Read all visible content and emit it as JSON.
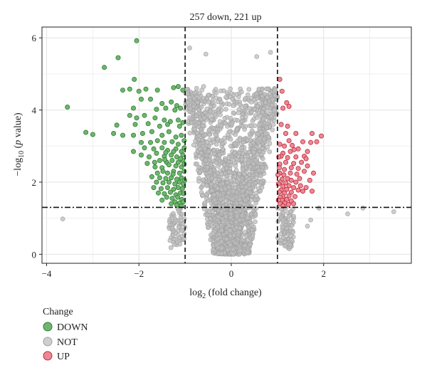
{
  "chart_data": {
    "type": "scatter",
    "title": "257 down, 221 up",
    "xlabel_main": "log",
    "xlabel_sub": "2",
    "xlabel_rest": " (fold change)",
    "ylabel_pre": "−log",
    "ylabel_sub": "10",
    "ylabel_open": " (",
    "ylabel_p": "p",
    "ylabel_close": " value)",
    "xlim": [
      -4.1,
      3.9
    ],
    "ylim": [
      -0.25,
      6.3
    ],
    "x_ticks": [
      -4,
      -2,
      0,
      2
    ],
    "x_tick_labels": [
      "−4",
      "−2",
      "0",
      "2"
    ],
    "y_ticks": [
      0,
      2,
      4,
      6
    ],
    "y_tick_labels": [
      "0",
      "2",
      "4",
      "6"
    ],
    "grid": true,
    "fc_threshold": [
      -1,
      1
    ],
    "p_threshold": 1.3,
    "legend": {
      "title": "Change",
      "placement": "bottom-left",
      "entries": [
        {
          "label": "DOWN",
          "fill": "#6fb56f",
          "stroke": "#2e7d32"
        },
        {
          "label": "NOT",
          "fill": "#cfcfcf",
          "stroke": "#9e9e9e"
        },
        {
          "label": "UP",
          "fill": "#e88a96",
          "stroke": "#c62838"
        }
      ]
    },
    "counts": {
      "down": 257,
      "up": 221
    },
    "colors": {
      "down_fill": "#6fb56f",
      "down_stroke": "#2e7d32",
      "not_fill": "#bdbdbd",
      "not_stroke": "#9e9e9e",
      "up_fill": "#e88a96",
      "up_stroke": "#c62838"
    },
    "series": [
      {
        "name": "DOWN",
        "points": [
          [
            -2.05,
            5.92
          ],
          [
            -2.45,
            5.45
          ],
          [
            -2.75,
            5.18
          ],
          [
            -3.55,
            4.08
          ],
          [
            -2.1,
            4.85
          ],
          [
            -2.35,
            4.55
          ],
          [
            -2.2,
            4.58
          ],
          [
            -2.0,
            4.52
          ],
          [
            -1.85,
            4.58
          ],
          [
            -1.6,
            4.55
          ],
          [
            -1.25,
            4.62
          ],
          [
            -1.15,
            4.65
          ],
          [
            -1.05,
            4.55
          ],
          [
            -1.3,
            4.22
          ],
          [
            -1.18,
            4.12
          ],
          [
            -1.5,
            4.18
          ],
          [
            -1.75,
            4.3
          ],
          [
            -1.95,
            4.3
          ],
          [
            -2.12,
            4.05
          ],
          [
            -1.62,
            4.02
          ],
          [
            -1.42,
            4.05
          ],
          [
            -1.22,
            4.0
          ],
          [
            -1.1,
            4.05
          ],
          [
            -2.2,
            3.85
          ],
          [
            -2.05,
            3.78
          ],
          [
            -1.88,
            3.85
          ],
          [
            -1.65,
            3.78
          ],
          [
            -1.45,
            3.72
          ],
          [
            -1.32,
            3.68
          ],
          [
            -1.15,
            3.72
          ],
          [
            -2.48,
            3.58
          ],
          [
            -2.08,
            3.6
          ],
          [
            -1.8,
            3.62
          ],
          [
            -1.55,
            3.55
          ],
          [
            -1.38,
            3.6
          ],
          [
            -1.12,
            3.55
          ],
          [
            -1.05,
            3.65
          ],
          [
            -3.15,
            3.38
          ],
          [
            -3.0,
            3.32
          ],
          [
            -2.55,
            3.35
          ],
          [
            -2.35,
            3.3
          ],
          [
            -2.12,
            3.3
          ],
          [
            -1.92,
            3.35
          ],
          [
            -1.72,
            3.4
          ],
          [
            -1.5,
            3.3
          ],
          [
            -1.35,
            3.4
          ],
          [
            -1.2,
            3.25
          ],
          [
            -1.08,
            3.3
          ],
          [
            -1.95,
            3.1
          ],
          [
            -1.75,
            3.1
          ],
          [
            -1.6,
            3.15
          ],
          [
            -1.45,
            3.1
          ],
          [
            -1.28,
            3.12
          ],
          [
            -1.15,
            3.05
          ],
          [
            -1.02,
            3.15
          ],
          [
            -1.88,
            2.95
          ],
          [
            -1.68,
            2.92
          ],
          [
            -1.5,
            2.95
          ],
          [
            -1.38,
            2.88
          ],
          [
            -1.2,
            2.92
          ],
          [
            -1.08,
            2.85
          ],
          [
            -1.02,
            2.95
          ],
          [
            -1.95,
            2.75
          ],
          [
            -1.62,
            2.8
          ],
          [
            -1.45,
            2.72
          ],
          [
            -1.3,
            2.75
          ],
          [
            -1.18,
            2.7
          ],
          [
            -1.05,
            2.75
          ],
          [
            -1.42,
            2.82
          ],
          [
            -1.25,
            2.85
          ],
          [
            -2.12,
            2.85
          ],
          [
            -1.78,
            2.7
          ],
          [
            -1.55,
            2.6
          ],
          [
            -1.4,
            2.55
          ],
          [
            -1.28,
            2.6
          ],
          [
            -1.15,
            2.55
          ],
          [
            -1.05,
            2.6
          ],
          [
            -1.35,
            2.48
          ],
          [
            -1.2,
            2.45
          ],
          [
            -1.08,
            2.42
          ],
          [
            -1.65,
            2.42
          ],
          [
            -1.5,
            2.4
          ],
          [
            -1.6,
            2.25
          ],
          [
            -1.48,
            2.3
          ],
          [
            -1.38,
            2.25
          ],
          [
            -1.25,
            2.3
          ],
          [
            -1.12,
            2.25
          ],
          [
            -1.02,
            2.3
          ],
          [
            -1.72,
            2.15
          ],
          [
            -1.55,
            2.12
          ],
          [
            -1.42,
            2.1
          ],
          [
            -1.3,
            2.12
          ],
          [
            -1.18,
            2.08
          ],
          [
            -1.08,
            2.12
          ],
          [
            -1.62,
            2.0
          ],
          [
            -1.48,
            1.98
          ],
          [
            -1.35,
            2.0
          ],
          [
            -1.22,
            1.95
          ],
          [
            -1.12,
            2.0
          ],
          [
            -1.04,
            1.95
          ],
          [
            -1.68,
            1.85
          ],
          [
            -1.52,
            1.82
          ],
          [
            -1.38,
            1.85
          ],
          [
            -1.25,
            1.8
          ],
          [
            -1.15,
            1.85
          ],
          [
            -1.06,
            1.82
          ],
          [
            -1.58,
            1.7
          ],
          [
            -1.45,
            1.68
          ],
          [
            -1.32,
            1.72
          ],
          [
            -1.2,
            1.65
          ],
          [
            -1.1,
            1.7
          ],
          [
            -1.03,
            1.68
          ],
          [
            -1.4,
            1.58
          ],
          [
            -1.28,
            1.55
          ],
          [
            -1.16,
            1.58
          ],
          [
            -1.07,
            1.52
          ],
          [
            -1.22,
            1.45
          ],
          [
            -1.12,
            1.42
          ],
          [
            -1.04,
            1.45
          ],
          [
            -1.18,
            1.36
          ],
          [
            -1.08,
            1.34
          ],
          [
            -1.3,
            1.4
          ],
          [
            -1.5,
            1.5
          ],
          [
            -1.02,
            2.5
          ],
          [
            -1.01,
            2.05
          ],
          [
            -1.1,
            2.65
          ],
          [
            -1.26,
            2.22
          ],
          [
            -1.44,
            2.62
          ],
          [
            -1.66,
            2.55
          ],
          [
            -1.82,
            2.52
          ]
        ]
      },
      {
        "name": "UP",
        "points": [
          [
            1.05,
            4.85
          ],
          [
            1.1,
            4.52
          ],
          [
            1.2,
            4.2
          ],
          [
            1.25,
            4.1
          ],
          [
            1.12,
            4.05
          ],
          [
            1.08,
            3.6
          ],
          [
            1.22,
            3.55
          ],
          [
            1.18,
            3.35
          ],
          [
            1.75,
            3.35
          ],
          [
            1.95,
            3.28
          ],
          [
            1.72,
            3.1
          ],
          [
            1.85,
            3.12
          ],
          [
            1.55,
            3.12
          ],
          [
            1.32,
            3.02
          ],
          [
            1.15,
            3.0
          ],
          [
            1.05,
            3.05
          ],
          [
            1.65,
            2.85
          ],
          [
            1.45,
            2.92
          ],
          [
            1.28,
            2.85
          ],
          [
            1.12,
            2.8
          ],
          [
            1.58,
            2.72
          ],
          [
            1.4,
            2.7
          ],
          [
            1.22,
            2.68
          ],
          [
            1.08,
            2.72
          ],
          [
            1.52,
            2.55
          ],
          [
            1.35,
            2.52
          ],
          [
            1.18,
            2.55
          ],
          [
            1.05,
            2.5
          ],
          [
            1.45,
            2.38
          ],
          [
            1.3,
            2.4
          ],
          [
            1.15,
            2.35
          ],
          [
            1.04,
            2.4
          ],
          [
            1.42,
            2.22
          ],
          [
            1.28,
            2.25
          ],
          [
            1.14,
            2.2
          ],
          [
            1.05,
            2.25
          ],
          [
            1.22,
            2.1
          ],
          [
            1.1,
            2.08
          ],
          [
            1.3,
            2.05
          ],
          [
            1.4,
            2.0
          ],
          [
            1.18,
            1.98
          ],
          [
            1.06,
            2.0
          ],
          [
            1.25,
            1.9
          ],
          [
            1.12,
            1.88
          ],
          [
            1.35,
            1.85
          ],
          [
            1.45,
            1.78
          ],
          [
            1.2,
            1.8
          ],
          [
            1.08,
            1.78
          ],
          [
            1.3,
            1.72
          ],
          [
            1.15,
            1.7
          ],
          [
            1.04,
            1.72
          ],
          [
            1.25,
            1.62
          ],
          [
            1.12,
            1.6
          ],
          [
            1.38,
            1.6
          ],
          [
            1.06,
            1.58
          ],
          [
            1.2,
            1.52
          ],
          [
            1.1,
            1.5
          ],
          [
            1.3,
            1.48
          ],
          [
            1.02,
            1.5
          ],
          [
            1.16,
            1.42
          ],
          [
            1.06,
            1.4
          ],
          [
            1.24,
            1.38
          ],
          [
            1.12,
            1.34
          ],
          [
            1.35,
            1.4
          ],
          [
            1.7,
            2.05
          ],
          [
            1.75,
            1.75
          ],
          [
            1.62,
            1.85
          ],
          [
            1.55,
            1.75
          ],
          [
            1.5,
            1.9
          ],
          [
            1.48,
            2.1
          ],
          [
            1.58,
            2.3
          ],
          [
            1.65,
            2.45
          ],
          [
            1.62,
            2.65
          ],
          [
            1.78,
            2.25
          ],
          [
            1.36,
            2.9
          ],
          [
            1.25,
            3.15
          ],
          [
            1.4,
            3.35
          ],
          [
            1.02,
            1.95
          ],
          [
            1.01,
            2.2
          ],
          [
            1.03,
            2.7
          ]
        ]
      }
    ],
    "not_outliers": [
      [
        -3.65,
        0.98
      ],
      [
        -0.9,
        5.72
      ],
      [
        -0.55,
        5.55
      ],
      [
        0.55,
        5.48
      ],
      [
        0.85,
        5.6
      ],
      [
        -0.95,
        4.45
      ],
      [
        0.95,
        4.55
      ],
      [
        -0.6,
        4.65
      ],
      [
        0.6,
        4.58
      ],
      [
        -0.8,
        4.32
      ],
      [
        0.78,
        4.35
      ],
      [
        2.52,
        1.12
      ],
      [
        2.85,
        1.28
      ],
      [
        3.52,
        1.18
      ],
      [
        1.2,
        0.72
      ],
      [
        1.65,
        0.78
      ],
      [
        1.72,
        0.95
      ],
      [
        1.9,
        1.28
      ],
      [
        -1.2,
        0.92
      ],
      [
        -1.28,
        0.72
      ],
      [
        -1.05,
        0.85
      ],
      [
        1.12,
        0.95
      ],
      [
        1.35,
        1.05
      ]
    ]
  }
}
